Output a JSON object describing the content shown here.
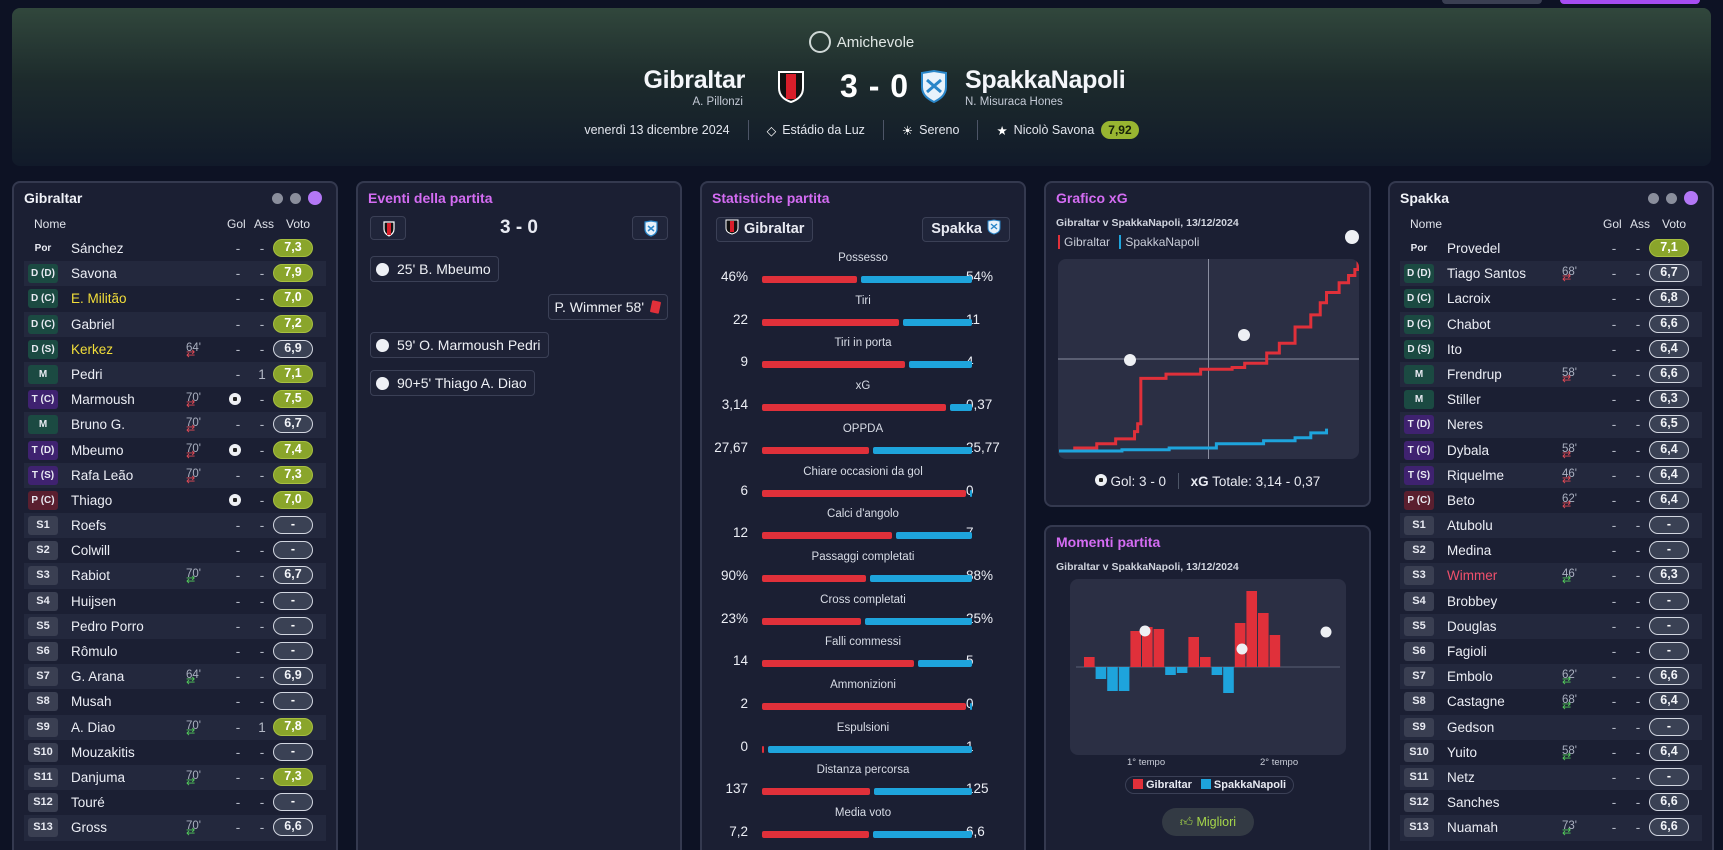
{
  "header": {
    "competition": "Amichevole",
    "home": {
      "name": "Gibraltar",
      "manager": "A. Pillonzi"
    },
    "away": {
      "name": "SpakkaNapoli",
      "manager": "N. Misuraca Hones"
    },
    "score": "3 - 0",
    "date": "venerdì 13 dicembre 2024",
    "stadium": "Estádio da Luz",
    "weather": "Sereno",
    "motm": "Nicolò Savona",
    "motm_rating": "7,92"
  },
  "lineup_columns": {
    "name": "Nome",
    "gol": "Gol",
    "ass": "Ass",
    "voto": "Voto"
  },
  "home_lineup": {
    "title": "Gibraltar",
    "players": [
      {
        "pos": "Por",
        "cls": "gk",
        "name": "Sánchez",
        "gol": "-",
        "ass": "-",
        "voto": "7,3",
        "v": "g"
      },
      {
        "pos": "D (D)",
        "cls": "d",
        "name": "Savona",
        "gol": "-",
        "ass": "-",
        "voto": "7,9",
        "v": "g"
      },
      {
        "pos": "D (C)",
        "cls": "d",
        "name": "E. Militão",
        "nc": "y",
        "gol": "-",
        "ass": "-",
        "voto": "7,0",
        "v": "g"
      },
      {
        "pos": "D (C)",
        "cls": "d",
        "name": "Gabriel",
        "gol": "-",
        "ass": "-",
        "voto": "7,2",
        "v": "g"
      },
      {
        "pos": "D (S)",
        "cls": "d",
        "name": "Kerkez",
        "nc": "y",
        "sub": "64'",
        "dir": "out",
        "gol": "-",
        "ass": "-",
        "voto": "6,9",
        "v": "n"
      },
      {
        "pos": "M",
        "cls": "m",
        "name": "Pedri",
        "gol": "-",
        "ass": "1",
        "voto": "7,1",
        "v": "g"
      },
      {
        "pos": "T (C)",
        "cls": "t",
        "name": "Marmoush",
        "sub": "70'",
        "dir": "out",
        "gol": "1",
        "ass": "-",
        "voto": "7,5",
        "v": "g"
      },
      {
        "pos": "M",
        "cls": "m",
        "name": "Bruno G.",
        "sub": "70'",
        "dir": "out",
        "gol": "-",
        "ass": "-",
        "voto": "6,7",
        "v": "n"
      },
      {
        "pos": "T (D)",
        "cls": "t",
        "name": "Mbeumo",
        "sub": "70'",
        "dir": "out",
        "gol": "1",
        "ass": "-",
        "voto": "7,4",
        "v": "g"
      },
      {
        "pos": "T (S)",
        "cls": "t",
        "name": "Rafa Leão",
        "sub": "70'",
        "dir": "out",
        "gol": "-",
        "ass": "-",
        "voto": "7,3",
        "v": "g"
      },
      {
        "pos": "P (C)",
        "cls": "p",
        "name": "Thiago",
        "gol": "1",
        "ass": "-",
        "voto": "7,0",
        "v": "g"
      },
      {
        "pos": "S1",
        "cls": "s",
        "name": "Roefs",
        "gol": "-",
        "ass": "-",
        "voto": "-",
        "v": "e"
      },
      {
        "pos": "S2",
        "cls": "s",
        "name": "Colwill",
        "gol": "-",
        "ass": "-",
        "voto": "-",
        "v": "e"
      },
      {
        "pos": "S3",
        "cls": "s",
        "name": "Rabiot",
        "sub": "70'",
        "dir": "in",
        "gol": "-",
        "ass": "-",
        "voto": "6,7",
        "v": "n"
      },
      {
        "pos": "S4",
        "cls": "s",
        "name": "Huijsen",
        "gol": "-",
        "ass": "-",
        "voto": "-",
        "v": "e"
      },
      {
        "pos": "S5",
        "cls": "s",
        "name": "Pedro Porro",
        "gol": "-",
        "ass": "-",
        "voto": "-",
        "v": "e"
      },
      {
        "pos": "S6",
        "cls": "s",
        "name": "Rômulo",
        "gol": "-",
        "ass": "-",
        "voto": "-",
        "v": "e"
      },
      {
        "pos": "S7",
        "cls": "s",
        "name": "G. Arana",
        "sub": "64'",
        "dir": "in",
        "gol": "-",
        "ass": "-",
        "voto": "6,9",
        "v": "n"
      },
      {
        "pos": "S8",
        "cls": "s",
        "name": "Musah",
        "gol": "-",
        "ass": "-",
        "voto": "-",
        "v": "e"
      },
      {
        "pos": "S9",
        "cls": "s",
        "name": "A. Diao",
        "sub": "70'",
        "dir": "in",
        "gol": "-",
        "ass": "1",
        "voto": "7,8",
        "v": "g"
      },
      {
        "pos": "S10",
        "cls": "s",
        "name": "Mouzakitis",
        "gol": "-",
        "ass": "-",
        "voto": "-",
        "v": "e"
      },
      {
        "pos": "S11",
        "cls": "s",
        "name": "Danjuma",
        "sub": "70'",
        "dir": "in",
        "gol": "-",
        "ass": "-",
        "voto": "7,3",
        "v": "g"
      },
      {
        "pos": "S12",
        "cls": "s",
        "name": "Touré",
        "gol": "-",
        "ass": "-",
        "voto": "-",
        "v": "e"
      },
      {
        "pos": "S13",
        "cls": "s",
        "name": "Gross",
        "sub": "70'",
        "dir": "in",
        "gol": "-",
        "ass": "-",
        "voto": "6,6",
        "v": "n"
      }
    ]
  },
  "away_lineup": {
    "title": "Spakka",
    "players": [
      {
        "pos": "Por",
        "cls": "gk",
        "name": "Provedel",
        "gol": "-",
        "ass": "-",
        "voto": "7,1",
        "v": "g"
      },
      {
        "pos": "D (D)",
        "cls": "d",
        "name": "Tiago Santos",
        "sub": "68'",
        "dir": "out",
        "gol": "-",
        "ass": "-",
        "voto": "6,7",
        "v": "n"
      },
      {
        "pos": "D (C)",
        "cls": "d",
        "name": "Lacroix",
        "gol": "-",
        "ass": "-",
        "voto": "6,8",
        "v": "n"
      },
      {
        "pos": "D (C)",
        "cls": "d",
        "name": "Chabot",
        "gol": "-",
        "ass": "-",
        "voto": "6,6",
        "v": "n"
      },
      {
        "pos": "D (S)",
        "cls": "d",
        "name": "Ito",
        "gol": "-",
        "ass": "-",
        "voto": "6,4",
        "v": "n"
      },
      {
        "pos": "M",
        "cls": "m",
        "name": "Frendrup",
        "sub": "58'",
        "dir": "out",
        "gol": "-",
        "ass": "-",
        "voto": "6,6",
        "v": "n"
      },
      {
        "pos": "M",
        "cls": "m",
        "name": "Stiller",
        "gol": "-",
        "ass": "-",
        "voto": "6,3",
        "v": "n"
      },
      {
        "pos": "T (D)",
        "cls": "t",
        "name": "Neres",
        "gol": "-",
        "ass": "-",
        "voto": "6,5",
        "v": "n"
      },
      {
        "pos": "T (C)",
        "cls": "t",
        "name": "Dybala",
        "sub": "58'",
        "dir": "out",
        "gol": "-",
        "ass": "-",
        "voto": "6,4",
        "v": "n"
      },
      {
        "pos": "T (S)",
        "cls": "t",
        "name": "Riquelme",
        "sub": "46'",
        "dir": "out",
        "gol": "-",
        "ass": "-",
        "voto": "6,4",
        "v": "n"
      },
      {
        "pos": "P (C)",
        "cls": "p",
        "name": "Beto",
        "sub": "62'",
        "dir": "out",
        "gol": "-",
        "ass": "-",
        "voto": "6,4",
        "v": "n"
      },
      {
        "pos": "S1",
        "cls": "s",
        "name": "Atubolu",
        "gol": "-",
        "ass": "-",
        "voto": "-",
        "v": "e"
      },
      {
        "pos": "S2",
        "cls": "s",
        "name": "Medina",
        "gol": "-",
        "ass": "-",
        "voto": "-",
        "v": "e"
      },
      {
        "pos": "S3",
        "cls": "s",
        "name": "Wimmer",
        "nc": "r",
        "sub": "46'",
        "dir": "in",
        "gol": "-",
        "ass": "-",
        "voto": "6,3",
        "v": "n"
      },
      {
        "pos": "S4",
        "cls": "s",
        "name": "Brobbey",
        "gol": "-",
        "ass": "-",
        "voto": "-",
        "v": "e"
      },
      {
        "pos": "S5",
        "cls": "s",
        "name": "Douglas",
        "gol": "-",
        "ass": "-",
        "voto": "-",
        "v": "e"
      },
      {
        "pos": "S6",
        "cls": "s",
        "name": "Fagioli",
        "gol": "-",
        "ass": "-",
        "voto": "-",
        "v": "e"
      },
      {
        "pos": "S7",
        "cls": "s",
        "name": "Embolo",
        "sub": "62'",
        "dir": "in",
        "gol": "-",
        "ass": "-",
        "voto": "6,6",
        "v": "n"
      },
      {
        "pos": "S8",
        "cls": "s",
        "name": "Castagne",
        "sub": "68'",
        "dir": "in",
        "gol": "-",
        "ass": "-",
        "voto": "6,4",
        "v": "n"
      },
      {
        "pos": "S9",
        "cls": "s",
        "name": "Gedson",
        "gol": "-",
        "ass": "-",
        "voto": "-",
        "v": "e"
      },
      {
        "pos": "S10",
        "cls": "s",
        "name": "Yuito",
        "sub": "58'",
        "dir": "in",
        "gol": "-",
        "ass": "-",
        "voto": "6,4",
        "v": "n"
      },
      {
        "pos": "S11",
        "cls": "s",
        "name": "Netz",
        "gol": "-",
        "ass": "-",
        "voto": "-",
        "v": "e"
      },
      {
        "pos": "S12",
        "cls": "s",
        "name": "Sanches",
        "gol": "-",
        "ass": "-",
        "voto": "6,6",
        "v": "n"
      },
      {
        "pos": "S13",
        "cls": "s",
        "name": "Nuamah",
        "sub": "73'",
        "dir": "in",
        "gol": "-",
        "ass": "-",
        "voto": "6,6",
        "v": "n"
      }
    ]
  },
  "events": {
    "title": "Eventi della partita",
    "score": "3 - 0",
    "items": [
      {
        "side": "home",
        "type": "goal",
        "text": "25' B. Mbeumo"
      },
      {
        "side": "away",
        "type": "red",
        "text": "P. Wimmer 58'"
      },
      {
        "side": "home",
        "type": "goal",
        "text": "59' O. Marmoush Pedri"
      },
      {
        "side": "home",
        "type": "goal",
        "text": "90+5' Thiago A. Diao"
      }
    ]
  },
  "stats": {
    "title": "Statistiche partita",
    "home_label": "Gibraltar",
    "away_label": "Spakka",
    "rows": [
      {
        "name": "Possesso",
        "l": "46%",
        "r": "54%",
        "lv": 46,
        "rv": 54
      },
      {
        "name": "Tiri",
        "l": "22",
        "r": "11",
        "lv": 22,
        "rv": 11
      },
      {
        "name": "Tiri in porta",
        "l": "9",
        "r": "4",
        "lv": 9,
        "rv": 4
      },
      {
        "name": "xG",
        "l": "3,14",
        "r": "0,37",
        "lv": 3.14,
        "rv": 0.37
      },
      {
        "name": "OPPDA",
        "l": "27,67",
        "r": "25,77",
        "lv": 27.67,
        "rv": 25.77
      },
      {
        "name": "Chiare occasioni da gol",
        "l": "6",
        "r": "0",
        "lv": 6,
        "rv": 0
      },
      {
        "name": "Calci d'angolo",
        "l": "12",
        "r": "7",
        "lv": 12,
        "rv": 7
      },
      {
        "name": "Passaggi completati",
        "l": "90%",
        "r": "88%",
        "lv": 90,
        "rv": 88
      },
      {
        "name": "Cross completati",
        "l": "23%",
        "r": "25%",
        "lv": 23,
        "rv": 25
      },
      {
        "name": "Falli commessi",
        "l": "14",
        "r": "5",
        "lv": 14,
        "rv": 5
      },
      {
        "name": "Ammonizioni",
        "l": "2",
        "r": "0",
        "lv": 2,
        "rv": 0
      },
      {
        "name": "Espulsioni",
        "l": "0",
        "r": "1",
        "lv": 0,
        "rv": 1
      },
      {
        "name": "Distanza percorsa",
        "l": "137",
        "r": "125",
        "lv": 137,
        "rv": 125
      },
      {
        "name": "Media voto",
        "l": "7,2",
        "r": "6,6",
        "lv": 7.2,
        "rv": 6.6
      }
    ]
  },
  "xg_chart": {
    "title": "Grafico xG",
    "subtitle": "Gibraltar v SpakkaNapoli, 13/12/2024",
    "legend_home": "Gibraltar",
    "legend_away": "SpakkaNapoli",
    "footer_gol": "Gol: 3 - 0",
    "footer_xg_label": "xG",
    "footer_xg": "Totale: 3,14 - 0,37"
  },
  "moments": {
    "title": "Momenti partita",
    "subtitle": "Gibraltar v SpakkaNapoli, 13/12/2024",
    "first_half": "1° tempo",
    "second_half": "2° tempo",
    "legend_home": "Gibraltar",
    "legend_away": "SpakkaNapoli",
    "best_button": "Migliori"
  },
  "chart_data": [
    {
      "type": "line",
      "title": "Grafico xG",
      "series": [
        {
          "name": "Gibraltar",
          "points": [
            [
              0,
              0
            ],
            [
              5,
              0.05
            ],
            [
              12,
              0.12
            ],
            [
              18,
              0.2
            ],
            [
              24,
              0.32
            ],
            [
              25,
              0.45
            ],
            [
              26,
              1.2
            ],
            [
              34,
              1.27
            ],
            [
              45,
              1.35
            ],
            [
              55,
              1.38
            ],
            [
              59,
              1.45
            ],
            [
              66,
              1.62
            ],
            [
              70,
              1.78
            ],
            [
              75,
              2.05
            ],
            [
              80,
              2.25
            ],
            [
              83,
              2.45
            ],
            [
              85,
              2.62
            ],
            [
              89,
              2.78
            ],
            [
              92,
              2.9
            ],
            [
              94,
              3.0
            ],
            [
              95,
              3.14
            ]
          ]
        },
        {
          "name": "SpakkaNapoli",
          "points": [
            [
              0,
              0
            ],
            [
              20,
              0.02
            ],
            [
              35,
              0.05
            ],
            [
              50,
              0.12
            ],
            [
              65,
              0.17
            ],
            [
              75,
              0.22
            ],
            [
              80,
              0.3
            ],
            [
              85,
              0.37
            ]
          ]
        }
      ],
      "colors": {
        "home": "#e0303a",
        "away": "#1ea4dc"
      }
    },
    {
      "type": "bar",
      "title": "Momenti partita",
      "series": [
        {
          "name": "Gibraltar",
          "values": [
            0.25,
            0,
            0,
            0,
            0.9,
            1.0,
            0.95,
            0,
            0,
            0.75,
            0.25,
            0,
            0,
            1.1,
            1.9,
            1.35,
            0.8
          ]
        },
        {
          "name": "SpakkaNapoli",
          "values": [
            0,
            -0.3,
            -0.6,
            -0.6,
            0,
            0,
            0,
            -0.2,
            -0.15,
            0,
            0,
            -0.2,
            -0.65,
            0,
            0,
            0,
            0
          ]
        }
      ]
    }
  ]
}
